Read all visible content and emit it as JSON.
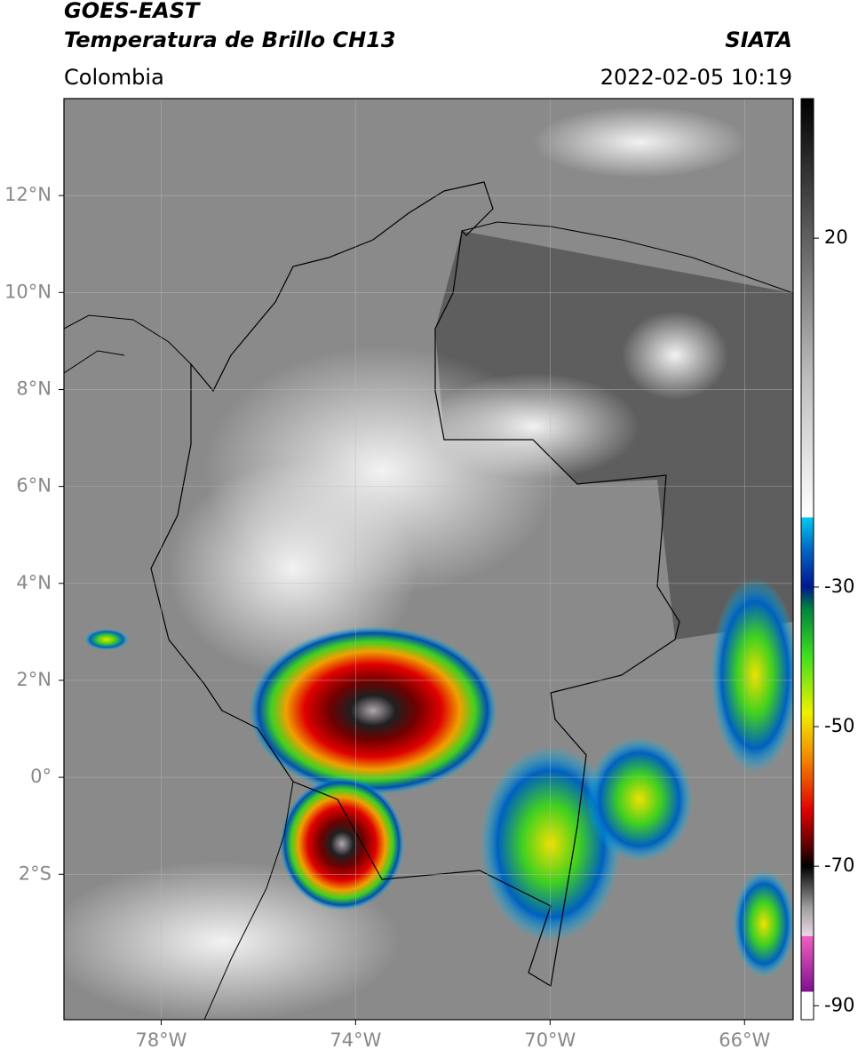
{
  "header": {
    "title": "GOES-EAST",
    "subtitle": "Temperatura de Brillo CH13",
    "source": "SIATA",
    "region": "Colombia",
    "datetime": "2022-02-05 10:19"
  },
  "map": {
    "type": "map",
    "xlim": [
      -80,
      -65
    ],
    "ylim": [
      -5,
      14
    ],
    "grid": true,
    "xticks": [
      {
        "value": -78,
        "label": "78°W"
      },
      {
        "value": -74,
        "label": "74°W"
      },
      {
        "value": -70,
        "label": "70°W"
      },
      {
        "value": -66,
        "label": "66°W"
      }
    ],
    "yticks": [
      {
        "value": 12,
        "label": "12°N"
      },
      {
        "value": 10,
        "label": "10°N"
      },
      {
        "value": 8,
        "label": "8°N"
      },
      {
        "value": 6,
        "label": "6°N"
      },
      {
        "value": 4,
        "label": "4°N"
      },
      {
        "value": 2,
        "label": "2°N"
      },
      {
        "value": 0,
        "label": "0°"
      },
      {
        "value": -2,
        "label": "2°S"
      }
    ]
  },
  "colorbar": {
    "lim": [
      -92,
      40
    ],
    "ticks": [
      20,
      -30,
      -50,
      -70,
      -90
    ],
    "stops": [
      {
        "value": 40,
        "color": "#000000"
      },
      {
        "value": 20,
        "color": "#606060"
      },
      {
        "value": 0,
        "color": "#bdbdbd"
      },
      {
        "value": -20,
        "color": "#ffffff"
      },
      {
        "value": -20.01,
        "color": "#00c8f0"
      },
      {
        "value": -25,
        "color": "#0060c0"
      },
      {
        "value": -30,
        "color": "#001890"
      },
      {
        "value": -33,
        "color": "#008040"
      },
      {
        "value": -40,
        "color": "#40e020"
      },
      {
        "value": -48,
        "color": "#f0f000"
      },
      {
        "value": -55,
        "color": "#f08000"
      },
      {
        "value": -62,
        "color": "#e00000"
      },
      {
        "value": -67,
        "color": "#600000"
      },
      {
        "value": -70,
        "color": "#000000"
      },
      {
        "value": -76,
        "color": "#a0a0a0"
      },
      {
        "value": -80,
        "color": "#e8d8e8"
      },
      {
        "value": -80.01,
        "color": "#f060c0"
      },
      {
        "value": -88,
        "color": "#801090"
      },
      {
        "value": -88.01,
        "color": "#ffffff"
      },
      {
        "value": -92,
        "color": "#ffffff"
      }
    ]
  }
}
